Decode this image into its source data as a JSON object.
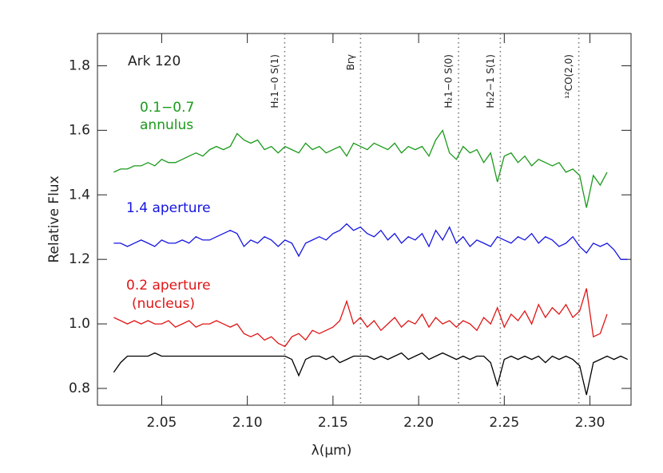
{
  "chart_data": {
    "type": "line",
    "label": "Ark 120",
    "x_label": "λ(μm)",
    "y_label": "Relative Flux",
    "xlim": [
      2.0125,
      2.324
    ],
    "ylim": [
      0.748,
      1.9
    ],
    "xticks": [
      2.05,
      {
        "value": 2.1,
        "label": "2.10"
      },
      2.15,
      {
        "value": 2.2,
        "label": "2.20"
      },
      2.25,
      {
        "value": 2.3,
        "label": "2.30"
      }
    ],
    "yticks": [
      0.8,
      {
        "value": 1.0,
        "label": "1.0"
      },
      1.2,
      1.4,
      1.6,
      1.8
    ],
    "x": [
      2.022,
      2.026,
      2.03,
      2.034,
      2.038,
      2.042,
      2.046,
      2.05,
      2.054,
      2.058,
      2.062,
      2.066,
      2.07,
      2.074,
      2.078,
      2.082,
      2.086,
      2.09,
      2.094,
      2.098,
      2.102,
      2.106,
      2.11,
      2.114,
      2.118,
      2.122,
      2.126,
      2.13,
      2.134,
      2.138,
      2.142,
      2.146,
      2.15,
      2.154,
      2.158,
      2.162,
      2.166,
      2.17,
      2.174,
      2.178,
      2.182,
      2.186,
      2.19,
      2.194,
      2.198,
      2.202,
      2.206,
      2.21,
      2.214,
      2.218,
      2.222,
      2.226,
      2.23,
      2.234,
      2.238,
      2.242,
      2.246,
      2.25,
      2.254,
      2.258,
      2.262,
      2.266,
      2.27,
      2.274,
      2.278,
      2.282,
      2.286,
      2.29,
      2.294,
      2.298,
      2.302,
      2.306,
      2.31,
      2.314,
      2.318,
      2.322
    ],
    "series": [
      {
        "color": "#1a9a1a",
        "label": [
          "0.1−0.7",
          "annulus"
        ],
        "values": [
          1.47,
          1.48,
          1.48,
          1.49,
          1.49,
          1.5,
          1.49,
          1.51,
          1.5,
          1.5,
          1.51,
          1.52,
          1.53,
          1.52,
          1.54,
          1.55,
          1.54,
          1.55,
          1.59,
          1.57,
          1.56,
          1.57,
          1.54,
          1.55,
          1.53,
          1.55,
          1.54,
          1.53,
          1.56,
          1.54,
          1.55,
          1.53,
          1.54,
          1.55,
          1.52,
          1.56,
          1.55,
          1.54,
          1.56,
          1.55,
          1.54,
          1.56,
          1.53,
          1.55,
          1.54,
          1.55,
          1.52,
          1.57,
          1.6,
          1.53,
          1.51,
          1.55,
          1.53,
          1.54,
          1.5,
          1.53,
          1.44,
          1.52,
          1.53,
          1.5,
          1.52,
          1.49,
          1.51,
          1.5,
          1.49,
          1.5,
          1.47,
          1.48,
          1.46,
          1.36,
          1.46,
          1.43,
          1.47,
          null,
          null,
          null
        ]
      },
      {
        "color": "#1515e0",
        "label": [
          "1.4 aperture"
        ],
        "values": [
          1.25,
          1.25,
          1.24,
          1.25,
          1.26,
          1.25,
          1.24,
          1.26,
          1.25,
          1.25,
          1.26,
          1.25,
          1.27,
          1.26,
          1.26,
          1.27,
          1.28,
          1.29,
          1.28,
          1.24,
          1.26,
          1.25,
          1.27,
          1.26,
          1.24,
          1.26,
          1.25,
          1.21,
          1.25,
          1.26,
          1.27,
          1.26,
          1.28,
          1.29,
          1.31,
          1.29,
          1.3,
          1.28,
          1.27,
          1.29,
          1.26,
          1.28,
          1.25,
          1.27,
          1.26,
          1.28,
          1.24,
          1.29,
          1.26,
          1.3,
          1.25,
          1.27,
          1.24,
          1.26,
          1.25,
          1.24,
          1.27,
          1.26,
          1.25,
          1.27,
          1.26,
          1.28,
          1.25,
          1.27,
          1.26,
          1.24,
          1.25,
          1.27,
          1.24,
          1.22,
          1.25,
          1.24,
          1.25,
          1.23,
          1.2,
          1.2
        ]
      },
      {
        "color": "#e01515",
        "label": [
          "0.2 aperture",
          "(nucleus)"
        ],
        "values": [
          1.02,
          1.01,
          1.0,
          1.01,
          1.0,
          1.01,
          1.0,
          1.0,
          1.01,
          0.99,
          1.0,
          1.01,
          0.99,
          1.0,
          1.0,
          1.01,
          1.0,
          0.99,
          1.0,
          0.97,
          0.96,
          0.97,
          0.95,
          0.96,
          0.94,
          0.93,
          0.96,
          0.97,
          0.95,
          0.98,
          0.97,
          0.98,
          0.99,
          1.01,
          1.07,
          1.0,
          1.02,
          0.99,
          1.01,
          0.98,
          1.0,
          1.02,
          0.99,
          1.01,
          1.0,
          1.03,
          0.99,
          1.02,
          1.0,
          1.01,
          0.99,
          1.01,
          1.0,
          0.98,
          1.02,
          1.0,
          1.05,
          0.99,
          1.03,
          1.01,
          1.04,
          1.0,
          1.06,
          1.02,
          1.05,
          1.03,
          1.06,
          1.02,
          1.04,
          1.11,
          0.96,
          0.97,
          1.03,
          null,
          null,
          null
        ]
      },
      {
        "color": "#000000",
        "values": [
          0.85,
          0.88,
          0.9,
          0.9,
          0.9,
          0.9,
          0.91,
          0.9,
          0.9,
          0.9,
          0.9,
          0.9,
          0.9,
          0.9,
          0.9,
          0.9,
          0.9,
          0.9,
          0.9,
          0.9,
          0.9,
          0.9,
          0.9,
          0.9,
          0.9,
          0.9,
          0.89,
          0.84,
          0.89,
          0.9,
          0.9,
          0.89,
          0.9,
          0.88,
          0.89,
          0.9,
          0.9,
          0.9,
          0.89,
          0.9,
          0.89,
          0.9,
          0.91,
          0.89,
          0.9,
          0.91,
          0.89,
          0.9,
          0.91,
          0.9,
          0.89,
          0.9,
          0.89,
          0.9,
          0.9,
          0.88,
          0.81,
          0.89,
          0.9,
          0.89,
          0.9,
          0.89,
          0.9,
          0.88,
          0.9,
          0.89,
          0.9,
          0.89,
          0.87,
          0.78,
          0.88,
          0.89,
          0.9,
          0.89,
          0.9,
          0.89
        ]
      }
    ],
    "lines": [
      {
        "x": 2.1218,
        "label": "H₂1−0 S(1)"
      },
      {
        "x": 2.1661,
        "label": "Brγ"
      },
      {
        "x": 2.2233,
        "label": "H₂1−0 S(0)"
      },
      {
        "x": 2.2477,
        "label": "H₂2−1 S(1)"
      },
      {
        "x": 2.2935,
        "label": "¹²CO(2,0)"
      }
    ]
  }
}
